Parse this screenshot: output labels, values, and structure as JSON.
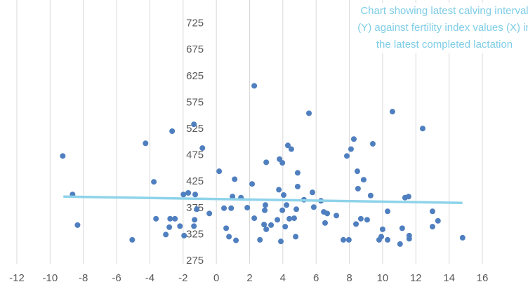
{
  "chart_data": {
    "type": "scatter",
    "title": "Chart showing latest calving interval (Y) against fertility index values (X) in the latest completed lactation",
    "color": "#4f7fbf",
    "x": [
      -9.24,
      -8.65,
      -8.35,
      -5.06,
      -4.26,
      -3.76,
      -3.63,
      -3.04,
      -2.83,
      -2.78,
      -2.66,
      -2.49,
      -2.19,
      -1.94,
      -1.98,
      -1.69,
      -1.35,
      -1.31,
      -1.27,
      -1.35,
      -1.18,
      -0.84,
      -0.42,
      0.17,
      0.46,
      0.59,
      0.76,
      0.89,
      0.97,
      1.1,
      1.18,
      1.48,
      1.86,
      2.15,
      2.28,
      2.28,
      2.62,
      2.87,
      2.91,
      2.95,
      3.0,
      3.0,
      3.29,
      3.67,
      3.76,
      3.8,
      3.88,
      3.97,
      3.97,
      4.05,
      4.14,
      4.22,
      4.3,
      4.39,
      4.51,
      4.68,
      4.81,
      4.77,
      4.89,
      4.89,
      5.27,
      5.57,
      5.78,
      5.86,
      6.29,
      6.46,
      6.54,
      6.67,
      7.22,
      7.64,
      7.85,
      7.97,
      8.1,
      8.27,
      8.4,
      8.48,
      8.52,
      8.69,
      8.86,
      9.07,
      9.28,
      9.41,
      9.79,
      9.92,
      10.0,
      10.3,
      10.3,
      10.59,
      11.05,
      11.18,
      11.35,
      11.56,
      11.6,
      11.6,
      12.41,
      13.0,
      13.0,
      13.33,
      14.81
    ],
    "values": [
      474,
      401,
      343,
      315,
      498,
      425,
      355,
      325,
      339,
      355,
      521,
      355,
      341,
      323,
      401,
      404,
      534,
      353,
      401,
      341,
      373,
      489,
      365,
      445,
      375,
      337,
      321,
      375,
      397,
      430,
      314,
      395,
      376,
      421,
      607,
      356,
      315,
      344,
      371,
      381,
      462,
      335,
      343,
      353,
      410,
      468,
      312,
      371,
      461,
      400,
      340,
      381,
      494,
      355,
      487,
      356,
      373,
      321,
      442,
      416,
      391,
      555,
      405,
      377,
      389,
      368,
      347,
      365,
      361,
      315,
      474,
      315,
      487,
      506,
      345,
      445,
      412,
      355,
      429,
      353,
      399,
      497,
      315,
      321,
      335,
      315,
      369,
      558,
      307,
      337,
      395,
      397,
      323,
      317,
      526,
      369,
      340,
      351,
      319
    ],
    "trendline": {
      "x": [
        -9.2,
        14.8
      ],
      "values": [
        397,
        385
      ],
      "color": "#8ed3ea"
    },
    "xlim": [
      -12,
      16
    ],
    "xticks": [
      -12,
      -10,
      -8,
      -6,
      -4,
      -2,
      0,
      2,
      4,
      6,
      8,
      10,
      12,
      14,
      16
    ],
    "ylim": [
      275,
      775
    ],
    "yticks": [
      275,
      325,
      375,
      425,
      475,
      525,
      575,
      625,
      675,
      725
    ],
    "grid": true
  }
}
